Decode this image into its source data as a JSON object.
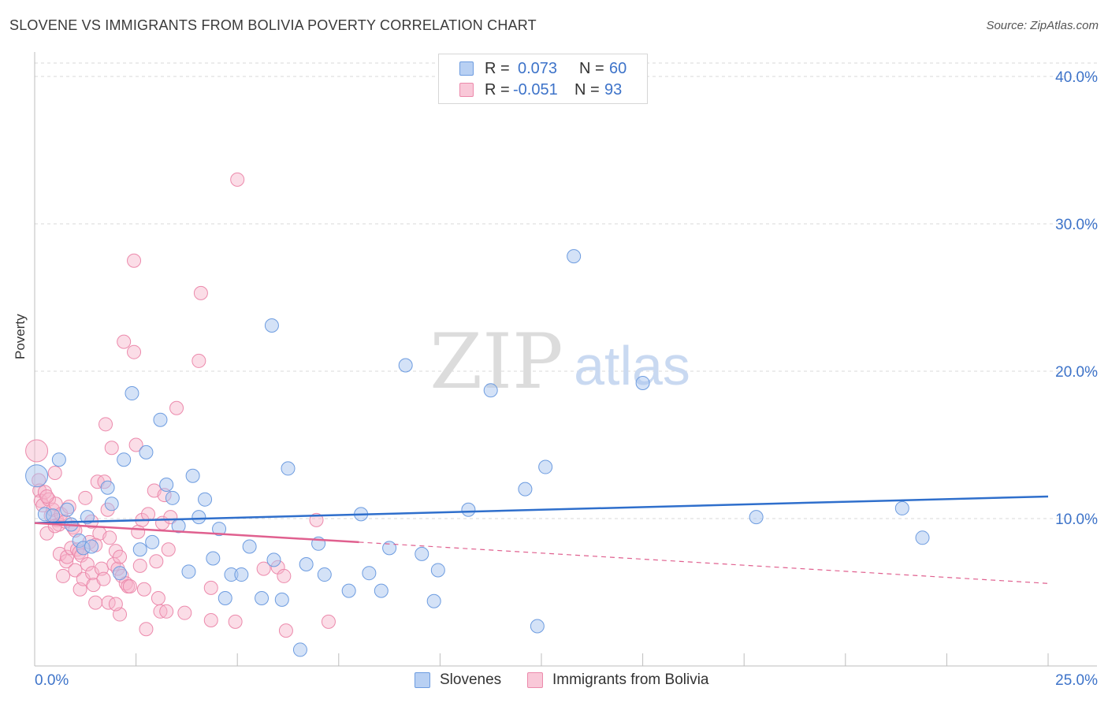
{
  "header": {
    "title": "SLOVENE VS IMMIGRANTS FROM BOLIVIA POVERTY CORRELATION CHART",
    "source": "Source: ZipAtlas.com"
  },
  "legend": {
    "rows": [
      {
        "r_label": "R =",
        "r_value": "0.073",
        "n_label": "N =",
        "n_value": "60"
      },
      {
        "r_label": "R =",
        "r_value": "-0.051",
        "n_label": "N =",
        "n_value": "93"
      }
    ]
  },
  "bottom_legend": {
    "items": [
      {
        "label": "Slovenes"
      },
      {
        "label": "Immigrants from Bolivia"
      }
    ]
  },
  "watermark": {
    "zip": "ZIP",
    "atlas": "atlas"
  },
  "colors": {
    "blue_fill": "#a9c6ef",
    "blue_stroke": "#6d9ce0",
    "blue_line": "#2f6fcc",
    "pink_fill": "#f6b3c9",
    "pink_stroke": "#ec8aac",
    "pink_line": "#e0608f",
    "axis_text": "#3d73c9"
  },
  "chart_data": {
    "type": "scatter",
    "title": "SLOVENE VS IMMIGRANTS FROM BOLIVIA POVERTY CORRELATION CHART",
    "xlabel": "",
    "ylabel": "Poverty",
    "xlim": [
      0,
      25
    ],
    "ylim": [
      0,
      40
    ],
    "x_tick_labels": [
      "0.0%",
      "25.0%"
    ],
    "y_ticks": [
      10,
      20,
      30,
      40
    ],
    "y_tick_labels": [
      "10.0%",
      "20.0%",
      "30.0%",
      "40.0%"
    ],
    "grid": true,
    "series": [
      {
        "name": "Slovenes",
        "r": 0.073,
        "n": 60,
        "trend": {
          "x0": 0,
          "y0": 9.7,
          "x1": 25,
          "y1": 11.5
        },
        "points": [
          [
            0.05,
            12.9
          ],
          [
            0.25,
            10.3
          ],
          [
            0.45,
            10.2
          ],
          [
            0.6,
            14.0
          ],
          [
            0.8,
            10.6
          ],
          [
            0.9,
            9.6
          ],
          [
            1.1,
            8.5
          ],
          [
            1.2,
            8.0
          ],
          [
            1.3,
            10.1
          ],
          [
            1.4,
            8.1
          ],
          [
            1.8,
            12.1
          ],
          [
            1.9,
            11.0
          ],
          [
            2.1,
            6.3
          ],
          [
            2.2,
            14.0
          ],
          [
            2.4,
            18.5
          ],
          [
            2.6,
            7.9
          ],
          [
            2.75,
            14.5
          ],
          [
            2.9,
            8.4
          ],
          [
            3.1,
            16.7
          ],
          [
            3.25,
            12.3
          ],
          [
            3.4,
            11.4
          ],
          [
            3.55,
            9.5
          ],
          [
            3.8,
            6.4
          ],
          [
            3.9,
            12.9
          ],
          [
            4.05,
            10.1
          ],
          [
            4.2,
            11.3
          ],
          [
            4.4,
            7.3
          ],
          [
            4.55,
            9.3
          ],
          [
            4.7,
            4.6
          ],
          [
            4.85,
            6.2
          ],
          [
            5.1,
            6.2
          ],
          [
            5.3,
            8.1
          ],
          [
            5.6,
            4.6
          ],
          [
            5.85,
            23.1
          ],
          [
            5.9,
            7.2
          ],
          [
            6.1,
            4.5
          ],
          [
            6.25,
            13.4
          ],
          [
            6.55,
            1.1
          ],
          [
            6.7,
            6.9
          ],
          [
            7.0,
            8.3
          ],
          [
            7.15,
            6.2
          ],
          [
            7.75,
            5.1
          ],
          [
            8.05,
            10.3
          ],
          [
            8.25,
            6.3
          ],
          [
            8.55,
            5.1
          ],
          [
            8.75,
            8.0
          ],
          [
            9.15,
            20.4
          ],
          [
            9.55,
            7.6
          ],
          [
            9.85,
            4.4
          ],
          [
            9.95,
            6.5
          ],
          [
            10.7,
            10.6
          ],
          [
            11.25,
            18.7
          ],
          [
            12.1,
            12.0
          ],
          [
            12.4,
            2.7
          ],
          [
            12.6,
            13.5
          ],
          [
            13.3,
            27.8
          ],
          [
            15.0,
            19.2
          ],
          [
            17.8,
            10.1
          ],
          [
            21.4,
            10.7
          ],
          [
            21.9,
            8.7
          ]
        ]
      },
      {
        "name": "Immigrants from Bolivia",
        "r": -0.051,
        "n": 93,
        "trend": {
          "x0": 0,
          "y0": 9.7,
          "x1": 8.0,
          "y1": 8.4
        },
        "trend_dashed": {
          "x0": 8.0,
          "y0": 8.4,
          "x1": 25,
          "y1": 5.6
        },
        "points": [
          [
            0.05,
            14.6
          ],
          [
            0.1,
            12.6
          ],
          [
            0.12,
            11.9
          ],
          [
            0.15,
            11.2
          ],
          [
            0.2,
            10.9
          ],
          [
            0.25,
            11.8
          ],
          [
            0.3,
            9.0
          ],
          [
            0.35,
            11.3
          ],
          [
            0.4,
            10.2
          ],
          [
            0.45,
            10.6
          ],
          [
            0.5,
            13.1
          ],
          [
            0.52,
            11.0
          ],
          [
            0.55,
            9.9
          ],
          [
            0.6,
            9.6
          ],
          [
            0.62,
            7.6
          ],
          [
            0.65,
            10.3
          ],
          [
            0.7,
            6.1
          ],
          [
            0.75,
            9.8
          ],
          [
            0.78,
            7.1
          ],
          [
            0.8,
            7.4
          ],
          [
            0.85,
            10.8
          ],
          [
            0.9,
            8.0
          ],
          [
            0.95,
            9.4
          ],
          [
            1.0,
            6.5
          ],
          [
            1.05,
            7.9
          ],
          [
            1.1,
            7.7
          ],
          [
            1.12,
            5.2
          ],
          [
            1.15,
            7.5
          ],
          [
            1.2,
            5.9
          ],
          [
            1.25,
            11.4
          ],
          [
            1.3,
            6.9
          ],
          [
            1.35,
            8.4
          ],
          [
            1.4,
            9.8
          ],
          [
            1.42,
            6.3
          ],
          [
            1.45,
            5.5
          ],
          [
            1.5,
            4.3
          ],
          [
            1.55,
            12.5
          ],
          [
            1.6,
            9.0
          ],
          [
            1.65,
            6.6
          ],
          [
            1.7,
            5.9
          ],
          [
            1.72,
            12.5
          ],
          [
            1.75,
            16.4
          ],
          [
            1.8,
            10.6
          ],
          [
            1.82,
            4.3
          ],
          [
            1.85,
            8.7
          ],
          [
            1.9,
            14.8
          ],
          [
            1.95,
            6.9
          ],
          [
            2.0,
            7.8
          ],
          [
            2.05,
            6.6
          ],
          [
            2.1,
            7.4
          ],
          [
            2.1,
            3.5
          ],
          [
            2.15,
            6.1
          ],
          [
            2.2,
            22.0
          ],
          [
            2.25,
            5.6
          ],
          [
            2.3,
            5.4
          ],
          [
            2.35,
            5.4
          ],
          [
            2.45,
            27.5
          ],
          [
            2.45,
            21.3
          ],
          [
            2.5,
            15.0
          ],
          [
            2.55,
            9.1
          ],
          [
            2.6,
            6.8
          ],
          [
            2.65,
            9.9
          ],
          [
            2.7,
            5.2
          ],
          [
            2.75,
            2.5
          ],
          [
            2.8,
            10.3
          ],
          [
            2.95,
            11.9
          ],
          [
            3.0,
            7.1
          ],
          [
            3.05,
            4.6
          ],
          [
            3.1,
            3.7
          ],
          [
            3.15,
            9.7
          ],
          [
            3.2,
            11.6
          ],
          [
            3.25,
            3.7
          ],
          [
            3.3,
            7.9
          ],
          [
            3.35,
            10.1
          ],
          [
            3.5,
            17.5
          ],
          [
            3.7,
            3.6
          ],
          [
            4.05,
            20.7
          ],
          [
            4.1,
            25.3
          ],
          [
            4.35,
            5.3
          ],
          [
            4.35,
            3.1
          ],
          [
            4.95,
            3.0
          ],
          [
            5.0,
            33.0
          ],
          [
            5.65,
            6.6
          ],
          [
            6.0,
            6.7
          ],
          [
            6.15,
            6.1
          ],
          [
            6.2,
            2.4
          ],
          [
            6.95,
            9.9
          ],
          [
            7.25,
            3.0
          ],
          [
            0.3,
            11.5
          ],
          [
            0.5,
            9.5
          ],
          [
            1.0,
            9.2
          ],
          [
            1.5,
            8.2
          ],
          [
            2.0,
            4.2
          ]
        ]
      }
    ]
  }
}
